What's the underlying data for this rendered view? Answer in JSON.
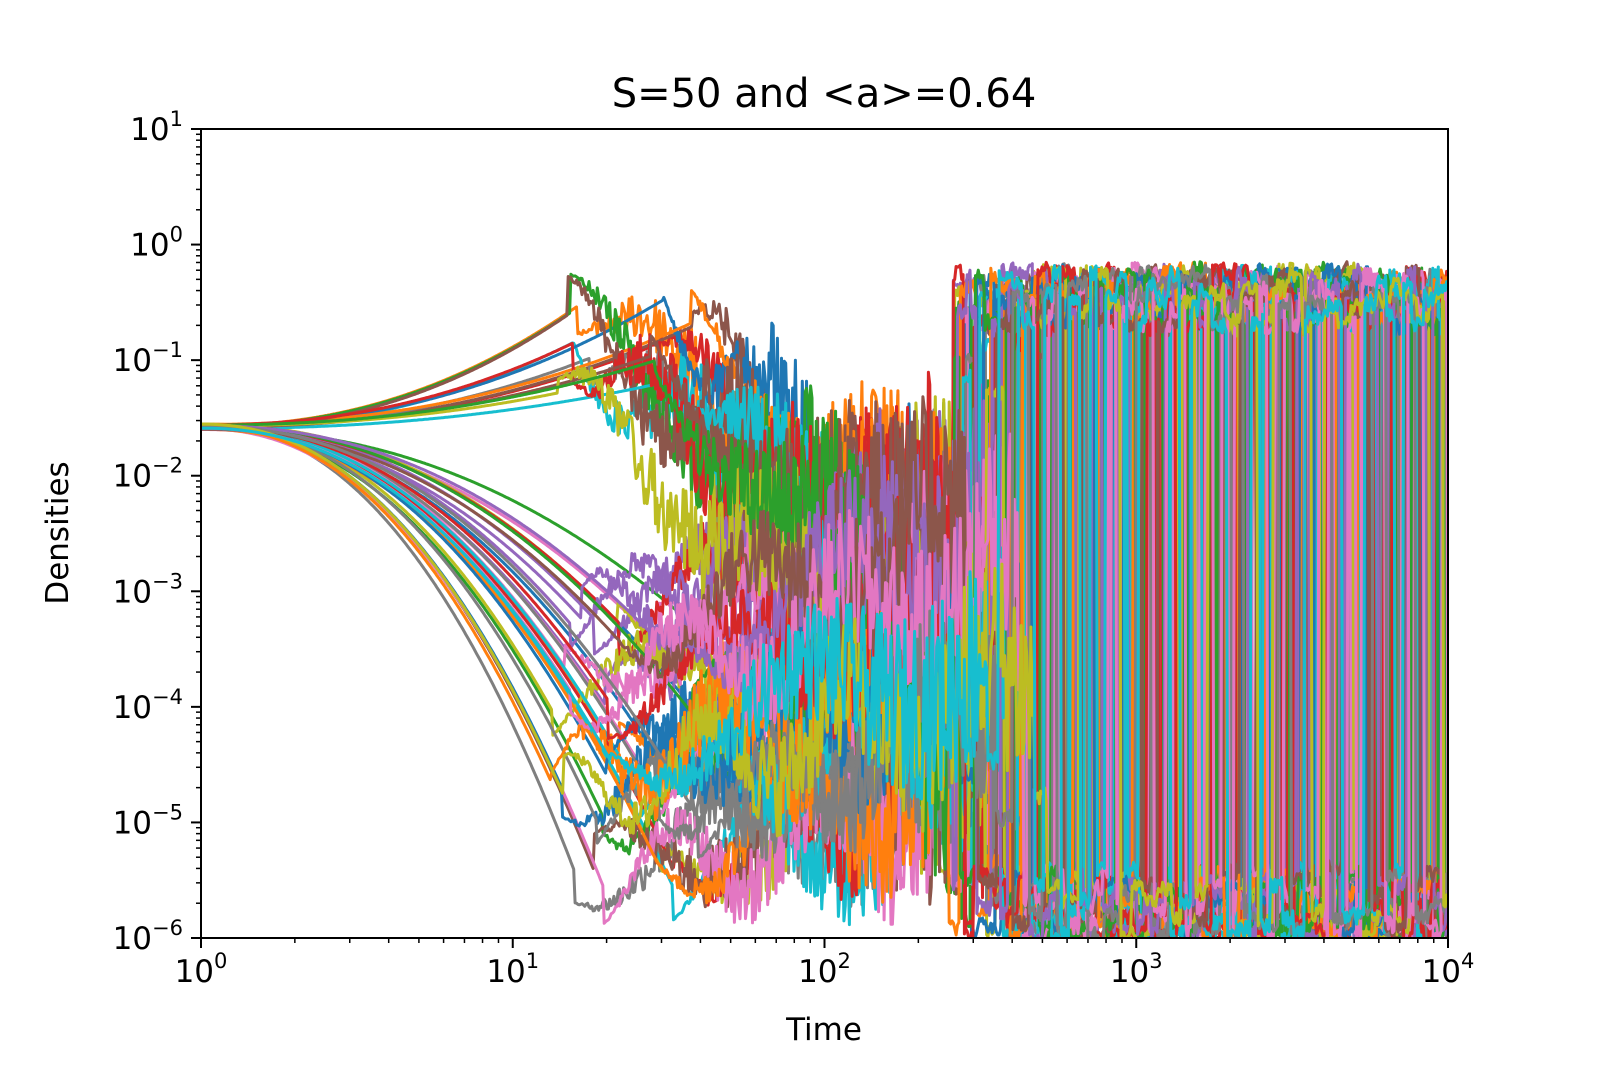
{
  "chart_data": {
    "type": "line",
    "title": "S=50 and <a>=0.64",
    "xlabel": "Time",
    "ylabel": "Densities",
    "xscale": "log",
    "yscale": "log",
    "xlim": [
      1,
      10000
    ],
    "ylim": [
      1e-06,
      10
    ],
    "grid": false,
    "legend": "none",
    "x_ticks": [
      {
        "value": 1,
        "base": "10",
        "exp": "0"
      },
      {
        "value": 10,
        "base": "10",
        "exp": "1"
      },
      {
        "value": 100,
        "base": "10",
        "exp": "2"
      },
      {
        "value": 1000,
        "base": "10",
        "exp": "3"
      },
      {
        "value": 10000,
        "base": "10",
        "exp": "4"
      }
    ],
    "y_ticks": [
      {
        "value": 10,
        "base": "10",
        "exp": "1"
      },
      {
        "value": 1,
        "base": "10",
        "exp": "0"
      },
      {
        "value": 0.1,
        "base": "10",
        "exp": "−1"
      },
      {
        "value": 0.01,
        "base": "10",
        "exp": "−2"
      },
      {
        "value": 0.001,
        "base": "10",
        "exp": "−3"
      },
      {
        "value": 0.0001,
        "base": "10",
        "exp": "−4"
      },
      {
        "value": 1e-05,
        "base": "10",
        "exp": "−5"
      },
      {
        "value": 1e-06,
        "base": "10",
        "exp": "−6"
      }
    ],
    "series_count": 50,
    "palette": [
      "#1f77b4",
      "#ff7f0e",
      "#2ca02c",
      "#d62728",
      "#9467bd",
      "#8c564b",
      "#e377c2",
      "#7f7f7f",
      "#bcbd22",
      "#17becf"
    ],
    "initial_density": [
      0.025,
      0.028
    ],
    "saturation_density": 0.6,
    "floor_density": 1e-06
  }
}
